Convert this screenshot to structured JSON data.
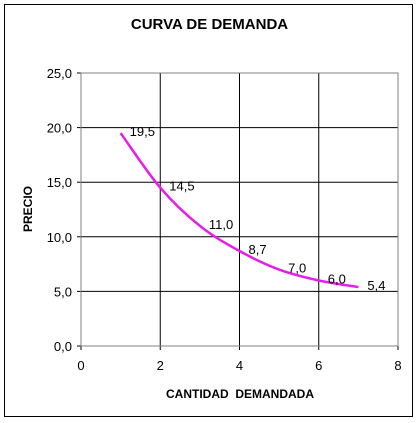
{
  "chart_data": {
    "type": "line",
    "title": "CURVA DE DEMANDA",
    "xlabel": "CANTIDAD  DEMANDADA",
    "ylabel": "PRECIO",
    "xlim": [
      0,
      8
    ],
    "ylim": [
      0,
      25
    ],
    "x_ticks": [
      "0",
      "2",
      "4",
      "6",
      "8"
    ],
    "y_ticks": [
      "0,0",
      "5,0",
      "10,0",
      "15,0",
      "20,0",
      "25,0"
    ],
    "grid": true,
    "legend": "none",
    "series": [
      {
        "color": "#e61ee6",
        "x": [
          1,
          2,
          3,
          4,
          5,
          6,
          7
        ],
        "y": [
          19.5,
          14.5,
          11.0,
          8.7,
          7.0,
          6.0,
          5.4
        ],
        "labels": [
          "19,5",
          "14,5",
          "11,0",
          "8,7",
          "7,0",
          "6,0",
          "5,4"
        ]
      }
    ]
  }
}
